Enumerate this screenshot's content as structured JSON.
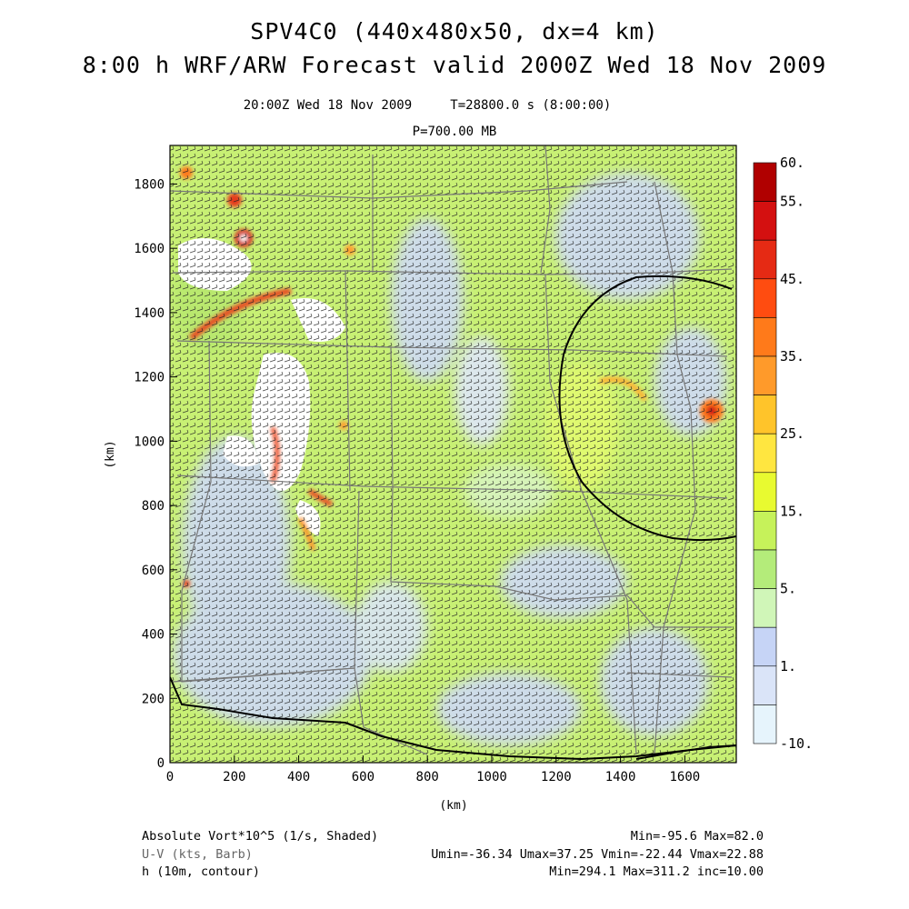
{
  "header": {
    "title_line1": "SPV4C0 (440x480x50, dx=4 km)",
    "title_line2": "8:00 h WRF/ARW Forecast valid 2000Z Wed 18 Nov 2009",
    "valid_time": "20:00Z Wed 18 Nov 2009",
    "model_time": "T=28800.0 s (8:00:00)",
    "level": "P=700.00 MB"
  },
  "axes": {
    "xlabel": "(km)",
    "ylabel": "(km)",
    "xlim": [
      0,
      1760
    ],
    "ylim": [
      0,
      1920
    ],
    "xticks": [
      "0",
      "200",
      "400",
      "600",
      "800",
      "1000",
      "1200",
      "1400",
      "1600"
    ],
    "yticks": [
      "0",
      "200",
      "400",
      "600",
      "800",
      "1000",
      "1200",
      "1400",
      "1600",
      "1800"
    ]
  },
  "colorbar": {
    "labels": [
      "60.",
      "55.",
      "45.",
      "35.",
      "25.",
      "15.",
      "5.",
      "1.",
      "-10."
    ],
    "colors": [
      "#b00000",
      "#d41010",
      "#e52a14",
      "#ff4c10",
      "#ff7a1a",
      "#ff9a2a",
      "#ffc42a",
      "#ffe640",
      "#e8fa30",
      "#c6f25a",
      "#b4ec7a",
      "#d0f6b8",
      "#c6d4f6",
      "#dae4f8",
      "#e6f4fc"
    ]
  },
  "footer": {
    "field1_name": "Absolute Vort*10^5 (1/s, Shaded)",
    "field1_stats": "Min=-95.6 Max=82.0",
    "field2_name": "U-V (kts, Barb)",
    "field2_stats": "Umin=-36.34 Umax=37.25 Vmin=-22.44 Vmax=22.88",
    "field3_name": "h (10m, contour)",
    "field3_stats": "Min=294.1 Max=311.2 inc=10.00"
  }
}
